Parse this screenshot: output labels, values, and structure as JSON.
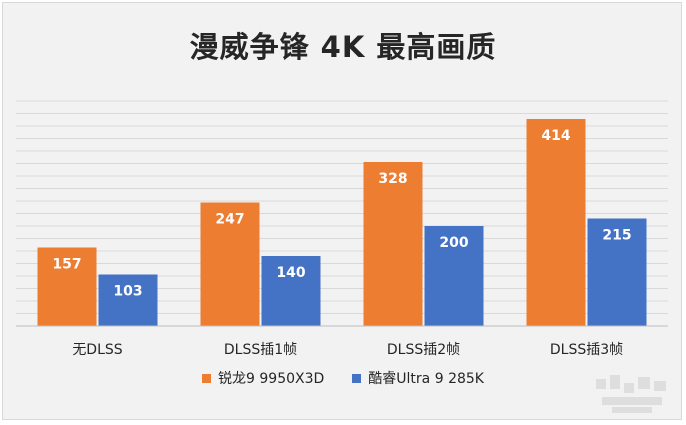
{
  "colors": {
    "series_1": "#ed7d31",
    "series_2": "#4472c4",
    "background": "#f2f2f2",
    "grid": "#d9d9d9",
    "axis": "#bfbfbf"
  },
  "chart_data": {
    "type": "bar",
    "title": "漫威争锋 4K 最高画质",
    "categories": [
      "无DLSS",
      "DLSS插1帧",
      "DLSS插2帧",
      "DLSS插3帧"
    ],
    "series": [
      {
        "name": "锐龙9 9950X3D",
        "values": [
          157,
          247,
          328,
          414
        ]
      },
      {
        "name": "酷睿Ultra 9 285K",
        "values": [
          103,
          140,
          200,
          215
        ]
      }
    ],
    "ylim": [
      0,
      450
    ],
    "grid": true,
    "y_tick_labels_visible": false,
    "data_labels": true,
    "legend_position": "bottom"
  }
}
